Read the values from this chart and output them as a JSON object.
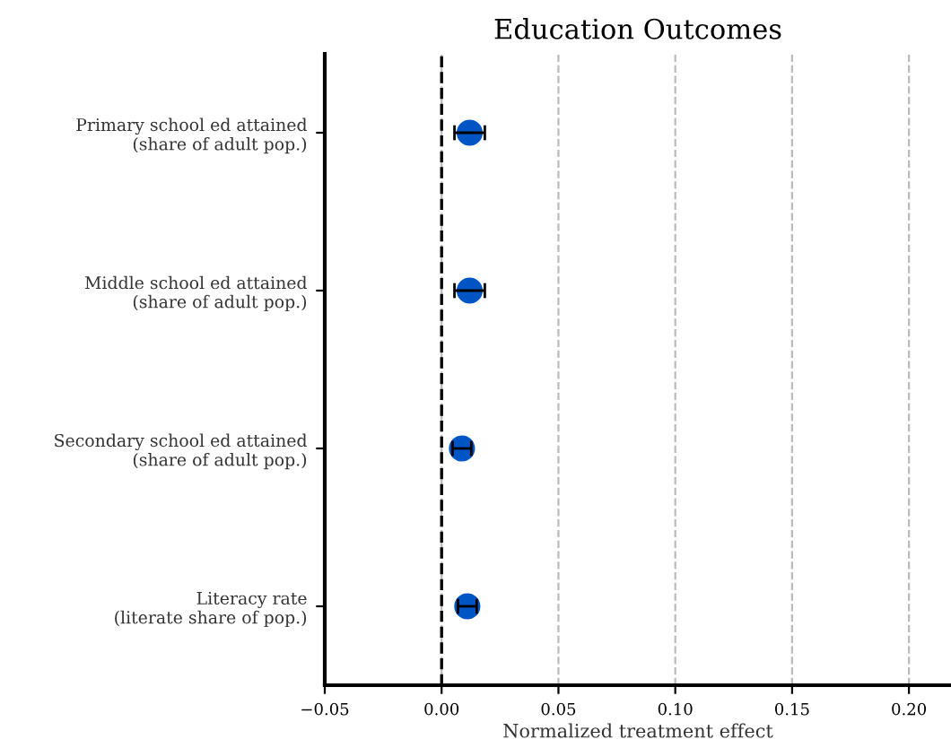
{
  "chart_data": {
    "type": "scatter",
    "orientation": "horizontal",
    "title": "Education Outcomes",
    "xlabel": "Normalized treatment effect",
    "categories": [
      "Primary school ed attained\n(share of adult pop.)",
      "Middle school ed attained\n(share of adult pop.)",
      "Secondary school ed attained\n(share of adult pop.)",
      "Literacy rate\n(literate share of pop.)"
    ],
    "values": [
      0.012,
      0.012,
      0.0087,
      0.011
    ],
    "errors": [
      0.0065,
      0.0065,
      0.004,
      0.004
    ],
    "color": "#0055c4",
    "marker": "circle",
    "xlim": [
      -0.05,
      0.218
    ],
    "xticks": [
      {
        "value": -0.05,
        "label": "−0.05"
      },
      {
        "value": 0.0,
        "label": "0.00"
      },
      {
        "value": 0.05,
        "label": "0.05"
      },
      {
        "value": 0.1,
        "label": "0.10"
      },
      {
        "value": 0.15,
        "label": "0.15"
      },
      {
        "value": 0.2,
        "label": "0.20"
      }
    ],
    "grid": "x",
    "ref_lines": [
      {
        "axis": "x",
        "value": 0,
        "color": "#000000",
        "line_style": "dashed"
      }
    ]
  }
}
